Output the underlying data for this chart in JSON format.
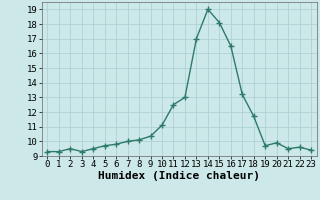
{
  "x": [
    0,
    1,
    2,
    3,
    4,
    5,
    6,
    7,
    8,
    9,
    10,
    11,
    12,
    13,
    14,
    15,
    16,
    17,
    18,
    19,
    20,
    21,
    22,
    23
  ],
  "y": [
    9.3,
    9.3,
    9.5,
    9.3,
    9.5,
    9.7,
    9.8,
    10.0,
    10.1,
    10.35,
    11.1,
    12.5,
    13.0,
    17.0,
    19.0,
    18.1,
    16.5,
    13.2,
    11.7,
    9.7,
    9.9,
    9.5,
    9.6,
    9.4
  ],
  "line_color": "#2d7a6a",
  "marker": "+",
  "marker_size": 4,
  "line_width": 1.0,
  "xlabel": "Humidex (Indice chaleur)",
  "xlabel_fontsize": 8,
  "xlabel_style": "bold",
  "ylim": [
    9,
    19.5
  ],
  "xlim": [
    -0.5,
    23.5
  ],
  "yticks": [
    9,
    10,
    11,
    12,
    13,
    14,
    15,
    16,
    17,
    18,
    19
  ],
  "xticks": [
    0,
    1,
    2,
    3,
    4,
    5,
    6,
    7,
    8,
    9,
    10,
    11,
    12,
    13,
    14,
    15,
    16,
    17,
    18,
    19,
    20,
    21,
    22,
    23
  ],
  "tick_fontsize": 6.5,
  "background_color": "#cce8e8",
  "grid_color": "#aacece",
  "grid_linewidth": 0.5,
  "spine_color": "#666666"
}
